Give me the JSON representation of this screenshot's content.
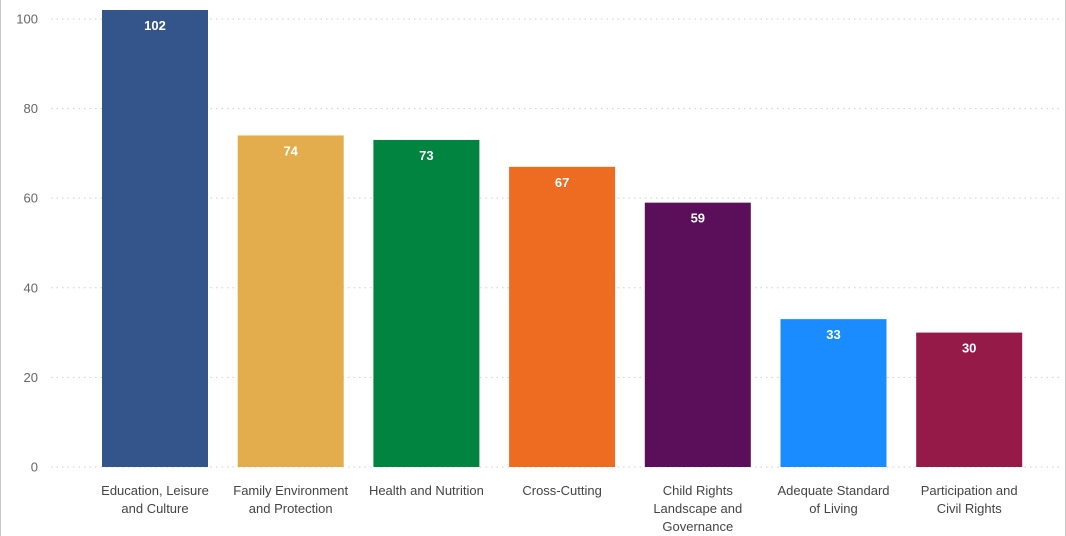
{
  "chart_data": {
    "type": "bar",
    "title": "",
    "xlabel": "",
    "ylabel": "",
    "ylim": [
      0,
      102
    ],
    "yticks": [
      0,
      20,
      40,
      60,
      80,
      100
    ],
    "grid": true,
    "categories": [
      [
        "Education, Leisure",
        "and Culture"
      ],
      [
        "Family Environment",
        "and Protection"
      ],
      [
        "Health and Nutrition"
      ],
      [
        "Cross-Cutting"
      ],
      [
        "Child Rights",
        "Landscape and",
        "Governance"
      ],
      [
        "Adequate Standard",
        "of Living"
      ],
      [
        "Participation and",
        "Civil Rights"
      ]
    ],
    "values": [
      102,
      74,
      73,
      67,
      59,
      33,
      30
    ],
    "colors": [
      "#34558b",
      "#e3ac4c",
      "#00843f",
      "#ee6b22",
      "#5b0e5a",
      "#1a8cff",
      "#951a48"
    ],
    "data_labels": true
  }
}
